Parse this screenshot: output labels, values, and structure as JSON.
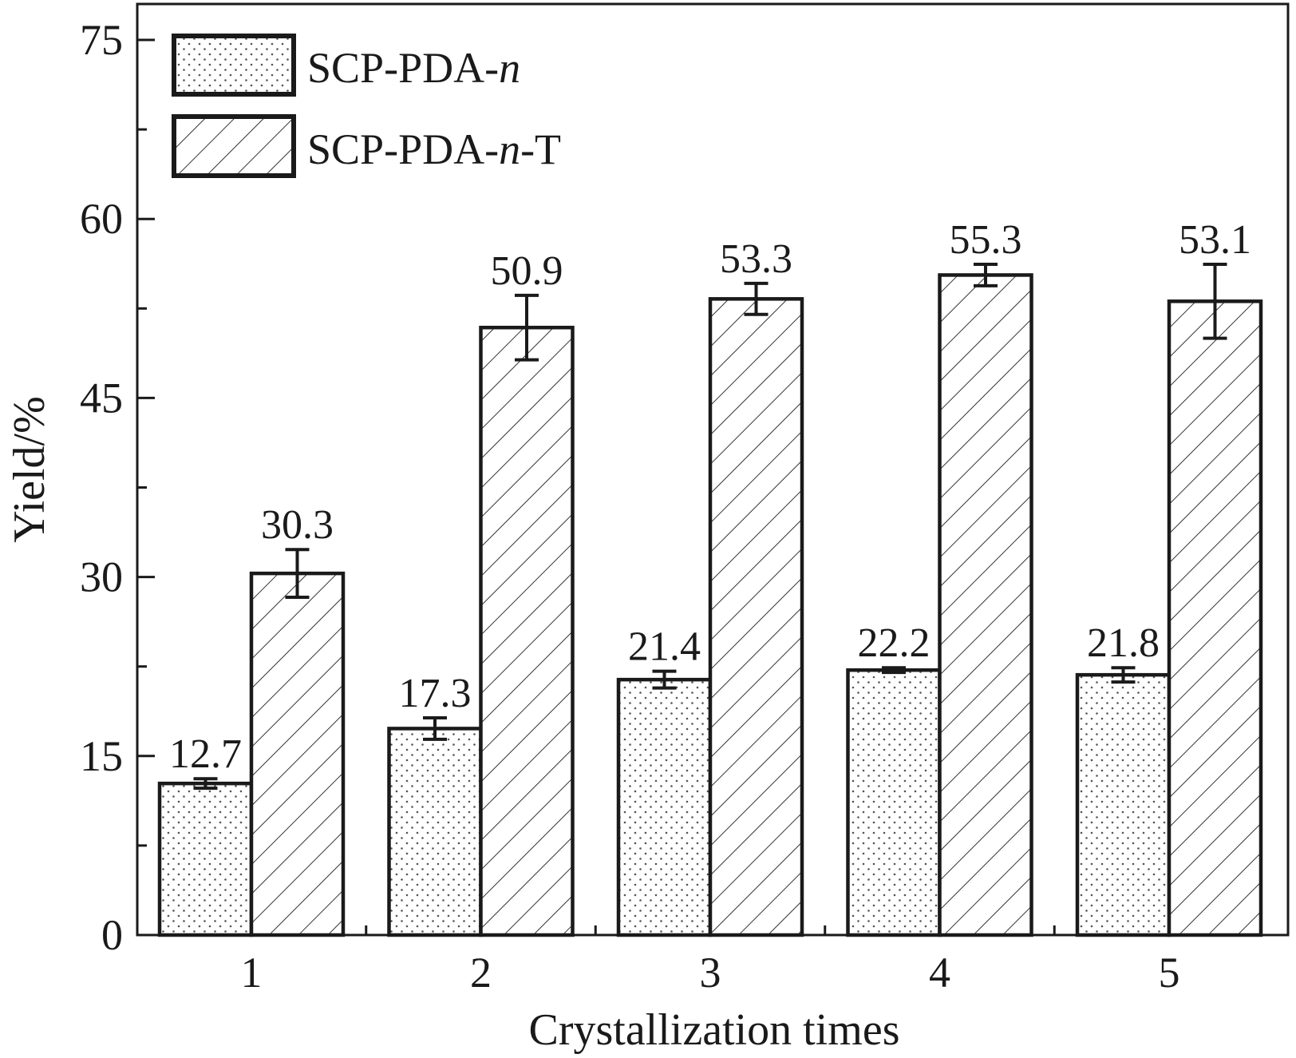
{
  "chart_data": {
    "type": "bar",
    "categories": [
      "1",
      "2",
      "3",
      "4",
      "5"
    ],
    "series": [
      {
        "name_parts": [
          "SCP-PDA-",
          "n",
          ""
        ],
        "pattern": "dots",
        "values": [
          12.7,
          17.3,
          21.4,
          22.2,
          21.8
        ],
        "labels": [
          "12.7",
          "17.3",
          "21.4",
          "22.2",
          "21.8"
        ],
        "errors": [
          0.4,
          0.9,
          0.7,
          0.2,
          0.6
        ]
      },
      {
        "name_parts": [
          "SCP-PDA-",
          "n",
          "-T"
        ],
        "pattern": "hatch",
        "values": [
          30.3,
          50.9,
          53.3,
          55.3,
          53.1
        ],
        "labels": [
          "30.3",
          "50.9",
          "53.3",
          "55.3",
          "53.1"
        ],
        "errors": [
          2.0,
          2.7,
          1.3,
          0.9,
          3.1
        ]
      }
    ],
    "xlabel": "Crystallization times",
    "ylabel": "Yield/%",
    "ylim": [
      0,
      75
    ],
    "yticks": [
      "0",
      "15",
      "30",
      "45",
      "60",
      "75"
    ],
    "grid": false,
    "legend_position": "top-left"
  }
}
